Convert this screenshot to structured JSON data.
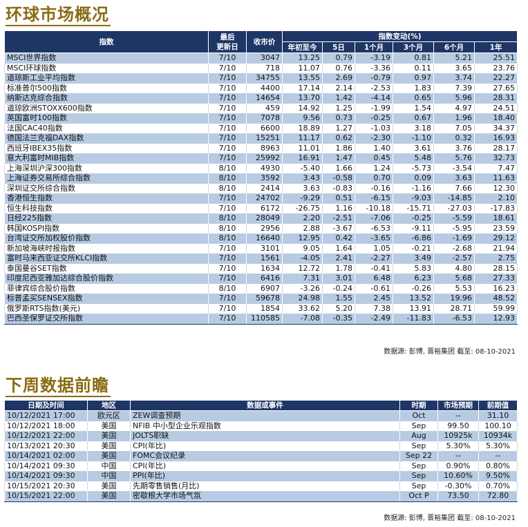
{
  "section1": {
    "title": "环球市场概况",
    "headers": {
      "index": "指数",
      "last_update_line1": "最后",
      "last_update_line2": "更新日",
      "close": "收市价",
      "change_group": "指数变动(%)",
      "ytd": "年初至今",
      "d5": "5日",
      "m1": "1个月",
      "m3": "3个月",
      "m6": "6个月",
      "y1": "1年"
    },
    "rows": [
      {
        "name": "MSCI世界指数",
        "date": "7/10",
        "close": "3047",
        "ytd": "13.25",
        "d5": "0.79",
        "m1": "-3.19",
        "m3": "0.81",
        "m6": "5.21",
        "y1": "25.51"
      },
      {
        "name": "MSCI环球指数",
        "date": "7/10",
        "close": "718",
        "ytd": "11.07",
        "d5": "0.76",
        "m1": "-3.36",
        "m3": "0.11",
        "m6": "3.65",
        "y1": "23.76"
      },
      {
        "name": "道琼斯工业平均指数",
        "date": "7/10",
        "close": "34755",
        "ytd": "13.55",
        "d5": "2.69",
        "m1": "-0.79",
        "m3": "0.97",
        "m6": "3.74",
        "y1": "22.27"
      },
      {
        "name": "标准普尔500指数",
        "date": "7/10",
        "close": "4400",
        "ytd": "17.14",
        "d5": "2.14",
        "m1": "-2.53",
        "m3": "1.83",
        "m6": "7.39",
        "y1": "27.65"
      },
      {
        "name": "纳斯达克综合指数",
        "date": "7/10",
        "close": "14654",
        "ytd": "13.70",
        "d5": "1.42",
        "m1": "-4.14",
        "m3": "0.65",
        "m6": "5.96",
        "y1": "28.31"
      },
      {
        "name": "道琼欧洲STOXX600指数",
        "date": "7/10",
        "close": "459",
        "ytd": "14.92",
        "d5": "1.25",
        "m1": "-1.99",
        "m3": "1.54",
        "m6": "4.97",
        "y1": "24.51"
      },
      {
        "name": "英国富时100指数",
        "date": "7/10",
        "close": "7078",
        "ytd": "9.56",
        "d5": "0.73",
        "m1": "-0.25",
        "m3": "0.67",
        "m6": "1.96",
        "y1": "18.40"
      },
      {
        "name": "法国CAC40指数",
        "date": "7/10",
        "close": "6600",
        "ytd": "18.89",
        "d5": "1.27",
        "m1": "-1.03",
        "m3": "3.18",
        "m6": "7.05",
        "y1": "34.37"
      },
      {
        "name": "德国法兰克福DAX指数",
        "date": "7/10",
        "close": "15251",
        "ytd": "11.17",
        "d5": "0.62",
        "m1": "-2.30",
        "m3": "-1.10",
        "m6": "0.32",
        "y1": "16.93"
      },
      {
        "name": "西班牙IBEX35指数",
        "date": "7/10",
        "close": "8963",
        "ytd": "11.01",
        "d5": "1.86",
        "m1": "1.40",
        "m3": "3.61",
        "m6": "3.76",
        "y1": "28.17"
      },
      {
        "name": "意大利富时MIB指数",
        "date": "7/10",
        "close": "25992",
        "ytd": "16.91",
        "d5": "1.47",
        "m1": "0.45",
        "m3": "5.48",
        "m6": "5.76",
        "y1": "32.73"
      },
      {
        "name": "上海深圳沪深300指数",
        "date": "8/10",
        "close": "4930",
        "ytd": "-5.40",
        "d5": "1.66",
        "m1": "1.24",
        "m3": "-5.73",
        "m6": "-3.54",
        "y1": "7.47"
      },
      {
        "name": "上海证券交易所综合指数",
        "date": "8/10",
        "close": "3592",
        "ytd": "3.43",
        "d5": "-0.58",
        "m1": "0.70",
        "m3": "0.09",
        "m6": "3.63",
        "y1": "11.63"
      },
      {
        "name": "深圳证交所综合指数",
        "date": "8/10",
        "close": "2414",
        "ytd": "3.63",
        "d5": "-0.83",
        "m1": "-0.16",
        "m3": "-1.16",
        "m6": "7.66",
        "y1": "12.30"
      },
      {
        "name": "香港恒生指数",
        "date": "7/10",
        "close": "24702",
        "ytd": "-9.29",
        "d5": "0.51",
        "m1": "-6.15",
        "m3": "-9.03",
        "m6": "-14.85",
        "y1": "2.10"
      },
      {
        "name": "恒生科技指数",
        "date": "7/10",
        "close": "6172",
        "ytd": "-26.75",
        "d5": "1.16",
        "m1": "-10.18",
        "m3": "-15.71",
        "m6": "-27.03",
        "y1": "-17.83"
      },
      {
        "name": "日经225指数",
        "date": "8/10",
        "close": "28049",
        "ytd": "2.20",
        "d5": "-2.51",
        "m1": "-7.06",
        "m3": "-0.25",
        "m6": "-5.59",
        "y1": "18.61"
      },
      {
        "name": "韩国KOSPI指数",
        "date": "8/10",
        "close": "2956",
        "ytd": "2.88",
        "d5": "-3.67",
        "m1": "-6.53",
        "m3": "-9.11",
        "m6": "-5.95",
        "y1": "23.59"
      },
      {
        "name": "台湾证交所加权股价指数",
        "date": "8/10",
        "close": "16640",
        "ytd": "12.95",
        "d5": "0.42",
        "m1": "-3.65",
        "m3": "-6.86",
        "m6": "-1.69",
        "y1": "29.12"
      },
      {
        "name": "新加坡海峡时报指数",
        "date": "7/10",
        "close": "3101",
        "ytd": "9.05",
        "d5": "1.64",
        "m1": "1.05",
        "m3": "-0.21",
        "m6": "-2.68",
        "y1": "21.94"
      },
      {
        "name": "富时马来西亚证交所KLCI指数",
        "date": "7/10",
        "close": "1561",
        "ytd": "-4.05",
        "d5": "2.41",
        "m1": "-2.27",
        "m3": "3.49",
        "m6": "-2.57",
        "y1": "2.75"
      },
      {
        "name": "泰国曼谷SET指数",
        "date": "7/10",
        "close": "1634",
        "ytd": "12.72",
        "d5": "1.78",
        "m1": "-0.41",
        "m3": "5.83",
        "m6": "4.80",
        "y1": "28.15"
      },
      {
        "name": "印度尼西亚雅加达综合股价指数",
        "date": "7/10",
        "close": "6416",
        "ytd": "7.31",
        "d5": "3.01",
        "m1": "6.48",
        "m3": "6.23",
        "m6": "5.68",
        "y1": "27.33"
      },
      {
        "name": "菲律宾综合股价指数",
        "date": "8/10",
        "close": "6907",
        "ytd": "-3.26",
        "d5": "-0.24",
        "m1": "-0.61",
        "m3": "-0.26",
        "m6": "5.53",
        "y1": "16.23"
      },
      {
        "name": "标普孟买SENSEX指数",
        "date": "7/10",
        "close": "59678",
        "ytd": "24.98",
        "d5": "1.55",
        "m1": "2.45",
        "m3": "13.52",
        "m6": "19.96",
        "y1": "48.52"
      },
      {
        "name": "俄罗斯RTS指数(美元)",
        "date": "7/10",
        "close": "1854",
        "ytd": "33.62",
        "d5": "5.20",
        "m1": "7.38",
        "m3": "13.91",
        "m6": "28.71",
        "y1": "59.99"
      },
      {
        "name": "巴西圣保罗证交所指数",
        "date": "7/10",
        "close": "110585",
        "ytd": "-7.08",
        "d5": "-0.35",
        "m1": "-2.49",
        "m3": "-11.83",
        "m6": "-6.53",
        "y1": "12.93"
      }
    ],
    "source": "数据源: 彭博, 晋裕集团 截至: 08-10-2021"
  },
  "section2": {
    "title": "下周数据前瞻",
    "headers": {
      "datetime": "日期及时间",
      "region": "地区",
      "event": "数据或事件",
      "period": "时期",
      "forecast": "市场预期",
      "prior": "前期值"
    },
    "rows": [
      {
        "datetime": "10/12/2021 17:00",
        "region": "欧元区",
        "event": "ZEW调查预期",
        "period": "Oct",
        "forecast": "--",
        "prior": "31.10"
      },
      {
        "datetime": "10/12/2021 18:00",
        "region": "美国",
        "event": "NFIB 中小型企业乐观指数",
        "period": "Sep",
        "forecast": "99.50",
        "prior": "100.10"
      },
      {
        "datetime": "10/12/2021 22:00",
        "region": "美国",
        "event": "JOLTS职缺",
        "period": "Aug",
        "forecast": "10925k",
        "prior": "10934k"
      },
      {
        "datetime": "10/13/2021 20:30",
        "region": "美国",
        "event": "CPI(年比)",
        "period": "Sep",
        "forecast": "5.30%",
        "prior": "5.30%"
      },
      {
        "datetime": "10/14/2021 02:00",
        "region": "美国",
        "event": "FOMC会议纪录",
        "period": "Sep 22",
        "forecast": "--",
        "prior": "--"
      },
      {
        "datetime": "10/14/2021 09:30",
        "region": "中国",
        "event": "CPI(年比)",
        "period": "Sep",
        "forecast": "0.90%",
        "prior": "0.80%"
      },
      {
        "datetime": "10/14/2021 09:30",
        "region": "中国",
        "event": "PPI(年比)",
        "period": "Sep",
        "forecast": "10.60%",
        "prior": "9.50%"
      },
      {
        "datetime": "10/15/2021 20:30",
        "region": "美国",
        "event": "先期零售销售(月比)",
        "period": "Sep",
        "forecast": "-0.30%",
        "prior": "0.70%"
      },
      {
        "datetime": "10/15/2021 22:00",
        "region": "美国",
        "event": "密歇根大学市场气氛",
        "period": "Oct P",
        "forecast": "73.50",
        "prior": "72.80"
      }
    ],
    "source": "数据源: 彭博, 晋裕集团 截至: 08-10-2021"
  }
}
